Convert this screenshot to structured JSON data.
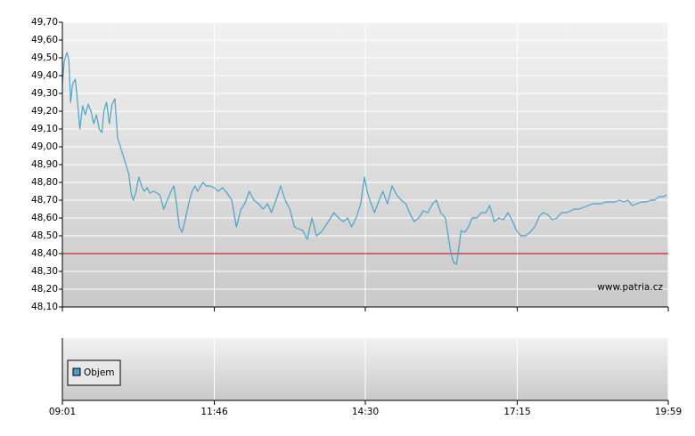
{
  "chart_data": {
    "type": "line",
    "x": [
      541,
      543,
      546,
      548,
      550,
      552,
      555,
      557,
      560,
      563,
      566,
      569,
      572,
      575,
      578,
      581,
      584,
      586,
      589,
      592,
      595,
      598,
      601,
      604,
      607,
      610,
      613,
      616,
      618,
      621,
      624,
      627,
      630,
      633,
      636,
      640,
      644,
      647,
      651,
      655,
      659,
      662,
      665,
      668,
      671,
      674,
      676,
      679,
      682,
      685,
      688,
      691,
      694,
      697,
      701,
      706,
      710,
      715,
      720,
      725,
      730,
      735,
      739,
      744,
      749,
      754,
      759,
      764,
      768,
      773,
      778,
      783,
      788,
      793,
      797,
      802,
      807,
      812,
      817,
      822,
      826,
      831,
      836,
      841,
      846,
      851,
      855,
      860,
      865,
      869,
      872,
      875,
      880,
      885,
      889,
      894,
      899,
      904,
      909,
      914,
      918,
      923,
      928,
      933,
      938,
      943,
      947,
      952,
      957,
      960,
      963,
      966,
      969,
      972,
      974,
      978,
      982,
      986,
      991,
      996,
      1001,
      1005,
      1010,
      1015,
      1020,
      1025,
      1030,
      1034,
      1039,
      1044,
      1049,
      1054,
      1059,
      1063,
      1068,
      1073,
      1078,
      1083,
      1088,
      1093,
      1097,
      1102,
      1107,
      1112,
      1117,
      1122,
      1126,
      1131,
      1136,
      1141,
      1146,
      1151,
      1155,
      1160,
      1165,
      1170,
      1175,
      1180,
      1184,
      1189,
      1194,
      1197
    ],
    "series": [
      {
        "color": "#4aa3c8",
        "values": [
          49.35,
          49.48,
          49.53,
          49.49,
          49.25,
          49.35,
          49.38,
          49.28,
          49.1,
          49.23,
          49.18,
          49.24,
          49.2,
          49.13,
          49.18,
          49.1,
          49.08,
          49.2,
          49.25,
          49.13,
          49.24,
          49.27,
          49.05,
          49.0,
          48.95,
          48.9,
          48.85,
          48.73,
          48.7,
          48.75,
          48.83,
          48.78,
          48.75,
          48.77,
          48.74,
          48.75,
          48.74,
          48.73,
          48.65,
          48.7,
          48.75,
          48.78,
          48.68,
          48.55,
          48.52,
          48.58,
          48.63,
          48.7,
          48.75,
          48.78,
          48.75,
          48.78,
          48.8,
          48.78,
          48.78,
          48.77,
          48.75,
          48.77,
          48.74,
          48.7,
          48.55,
          48.65,
          48.68,
          48.75,
          48.7,
          48.68,
          48.65,
          48.68,
          48.63,
          48.7,
          48.78,
          48.7,
          48.65,
          48.55,
          48.54,
          48.53,
          48.48,
          48.6,
          48.5,
          48.52,
          48.55,
          48.59,
          48.63,
          48.6,
          48.58,
          48.6,
          48.55,
          48.6,
          48.68,
          48.83,
          48.75,
          48.7,
          48.63,
          48.7,
          48.75,
          48.68,
          48.78,
          48.73,
          48.7,
          48.68,
          48.63,
          48.58,
          48.6,
          48.64,
          48.63,
          48.68,
          48.7,
          48.63,
          48.6,
          48.5,
          48.4,
          48.35,
          48.34,
          48.45,
          48.53,
          48.52,
          48.55,
          48.6,
          48.6,
          48.63,
          48.63,
          48.67,
          48.58,
          48.6,
          48.59,
          48.63,
          48.58,
          48.53,
          48.5,
          48.5,
          48.52,
          48.55,
          48.61,
          48.63,
          48.62,
          48.59,
          48.6,
          48.63,
          48.63,
          48.64,
          48.65,
          48.65,
          48.66,
          48.67,
          48.68,
          48.68,
          48.68,
          48.69,
          48.69,
          48.69,
          48.7,
          48.69,
          48.7,
          48.67,
          48.68,
          48.69,
          48.69,
          48.7,
          48.7,
          48.72,
          48.72,
          48.73
        ]
      }
    ],
    "xlim": [
      541,
      1199
    ],
    "xticks": [
      {
        "value": 541,
        "label": "09:01"
      },
      {
        "value": 706,
        "label": "11:46"
      },
      {
        "value": 870,
        "label": "14:30"
      },
      {
        "value": 1035,
        "label": "17:15"
      },
      {
        "value": 1199,
        "label": "19:59"
      }
    ],
    "ylim": [
      48.1,
      49.7
    ],
    "yticks": [
      {
        "value": 48.1,
        "label": "48,10"
      },
      {
        "value": 48.2,
        "label": "48,20"
      },
      {
        "value": 48.3,
        "label": "48,30"
      },
      {
        "value": 48.4,
        "label": "48,40"
      },
      {
        "value": 48.5,
        "label": "48,50"
      },
      {
        "value": 48.6,
        "label": "48,60"
      },
      {
        "value": 48.7,
        "label": "48,70"
      },
      {
        "value": 48.8,
        "label": "48,80"
      },
      {
        "value": 48.9,
        "label": "48,90"
      },
      {
        "value": 49.0,
        "label": "49,00"
      },
      {
        "value": 49.1,
        "label": "49,10"
      },
      {
        "value": 49.2,
        "label": "49,20"
      },
      {
        "value": 49.3,
        "label": "49,30"
      },
      {
        "value": 49.4,
        "label": "49,40"
      },
      {
        "value": 49.5,
        "label": "49,50"
      },
      {
        "value": 49.6,
        "label": "49,60"
      },
      {
        "value": 49.7,
        "label": "49,70"
      }
    ],
    "grid": true,
    "reference_line": {
      "value": 48.4,
      "color": "#cc0000"
    },
    "watermark": "www.patria.cz",
    "volume_legend": {
      "label": "Objem",
      "color": "#4a9fd0"
    }
  }
}
